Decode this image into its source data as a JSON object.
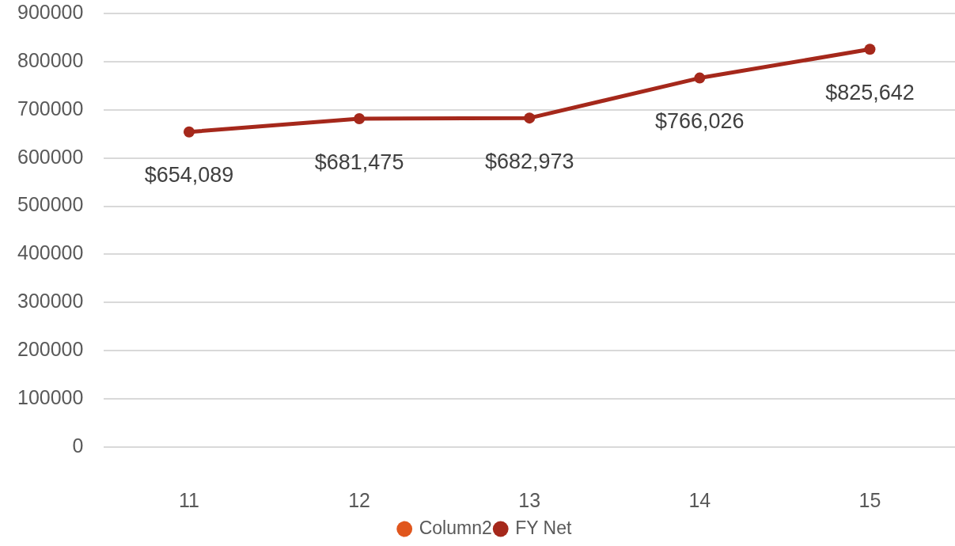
{
  "chart_data": {
    "type": "line",
    "categories": [
      "11",
      "12",
      "13",
      "14",
      "15"
    ],
    "series": [
      {
        "name": "Column2",
        "color": "#e0561d",
        "values": [
          null,
          null,
          null,
          null,
          null
        ]
      },
      {
        "name": "FY Net",
        "color": "#a5281b",
        "values": [
          654089,
          681475,
          682973,
          766026,
          825642
        ],
        "value_labels": [
          "$654,089",
          "$681,475",
          "$682,973",
          "$766,026",
          "$825,642"
        ]
      }
    ],
    "ylim": [
      0,
      900000
    ],
    "yticks": [
      0,
      100000,
      200000,
      300000,
      400000,
      500000,
      600000,
      700000,
      800000,
      900000
    ],
    "grid": "y",
    "legend": "bottom",
    "marker": "circle",
    "line_style": "solid"
  }
}
